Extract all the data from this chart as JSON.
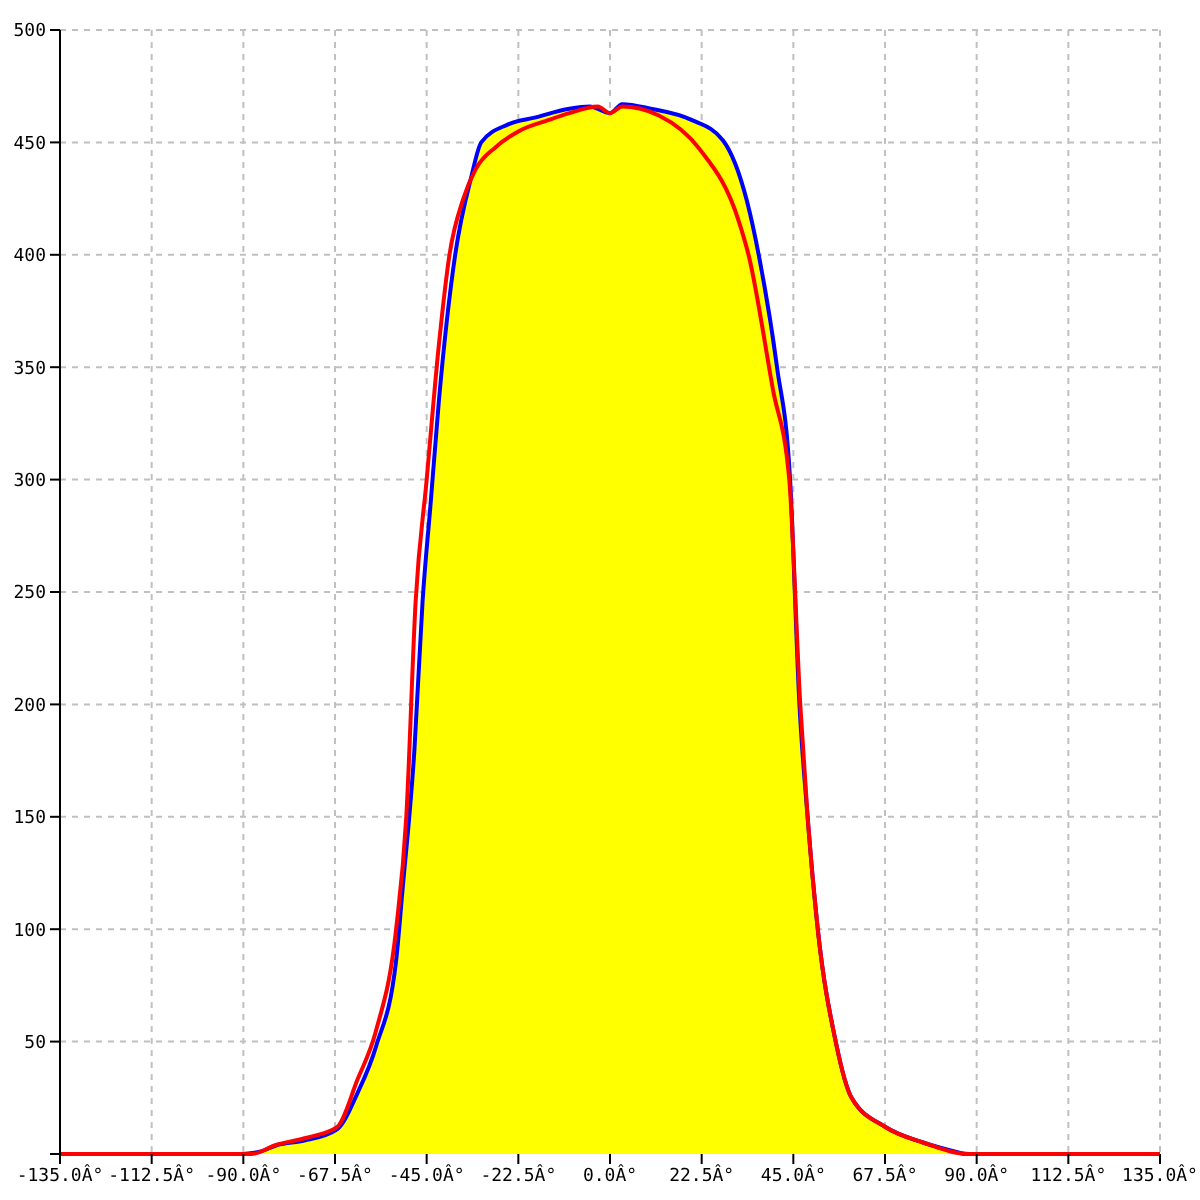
{
  "chart_data": {
    "type": "line",
    "xlim": [
      -135,
      135
    ],
    "xticks": [
      {
        "value": -135,
        "label": "-135.0Â°"
      },
      {
        "value": -112.5,
        "label": "-112.5Â°"
      },
      {
        "value": -90,
        "label": "-90.0Â°"
      },
      {
        "value": -67.5,
        "label": "-67.5Â°"
      },
      {
        "value": -45,
        "label": "-45.0Â°"
      },
      {
        "value": -22.5,
        "label": "-22.5Â°"
      },
      {
        "value": 0,
        "label": "0.0Â°"
      },
      {
        "value": 22.5,
        "label": "22.5Â°"
      },
      {
        "value": 45,
        "label": "45.0Â°"
      },
      {
        "value": 67.5,
        "label": "67.5Â°"
      },
      {
        "value": 90,
        "label": "90.0Â°"
      },
      {
        "value": 112.5,
        "label": "112.5Â°"
      },
      {
        "value": 135,
        "label": "135.0Â°"
      }
    ],
    "ylim": [
      0,
      500
    ],
    "yticks": [
      {
        "value": 0,
        "label": null
      },
      50,
      100,
      150,
      200,
      250,
      300,
      350,
      400,
      450,
      500
    ],
    "grid": true,
    "legend": false,
    "marker": "none",
    "line_style": "solid",
    "series": [
      {
        "color": "#ff0000",
        "x": [
          -135,
          -88,
          -82,
          -75,
          -67,
          -62,
          -57.4,
          -52.5,
          -50,
          -47.7,
          -45,
          -42,
          -39.4,
          -36,
          -33,
          -28,
          -22.4,
          -15,
          -10,
          -3,
          0,
          3,
          12,
          22,
          31.6,
          34,
          40,
          44,
          46.7,
          48.5,
          51,
          55.4,
          59.3,
          67.6,
          77,
          88,
          135
        ],
        "values": [
          0,
          0,
          4,
          7,
          12,
          33,
          55,
          100,
          150,
          246,
          300,
          360,
          400,
          425,
          438,
          448,
          455,
          460,
          463,
          466,
          463,
          466,
          462,
          447,
          415,
          400,
          340,
          300,
          200,
          150,
          100,
          50,
          25,
          12,
          5,
          0,
          0
        ]
      },
      {
        "type": "area",
        "color": "#0000ff",
        "colors": [
          "#ffff00",
          "#ffff00",
          "#ffff00",
          "#ffff00",
          "#ffff00",
          "#ffff00",
          "#ffff00",
          "#ffff00",
          "#ffff00",
          "#ffff00",
          "#ffff00",
          "#ffff00",
          "#ffff00",
          "#ffff00",
          "#ffff00",
          "#ffff00",
          "#ffff00",
          "#ffff00",
          "#ffff00",
          "#ffff00",
          "#ffff00",
          "#ffff00",
          "#ffff00",
          "#ffff00",
          "#ffff00",
          "#ffff00",
          "#ffff00",
          "#ffff00",
          "#ffff00",
          "#ffff00",
          "#ffff00",
          "#ffff00",
          "#ffff00",
          "#ffff00",
          "#ffff00",
          "#ffff00",
          "#ffff00"
        ],
        "x": [
          -90,
          -86,
          -81.7,
          -75,
          -67,
          -62,
          -57.4,
          -52.5,
          -51,
          -48,
          -46,
          -44,
          -42,
          -38,
          -34,
          -31.6,
          -25,
          -18.5,
          -10,
          -5,
          0,
          3,
          10,
          20,
          27.7,
          33.6,
          36.5,
          41,
          44.2,
          46.5,
          48.5,
          51,
          55.4,
          59.3,
          67.6,
          77,
          87
        ],
        "values": [
          0,
          1,
          4,
          6,
          11,
          27,
          48,
          86,
          116,
          180,
          246,
          290,
          335,
          400,
          435,
          450,
          458,
          461,
          465,
          466,
          463,
          467,
          465,
          460,
          451,
          424,
          400,
          350,
          300,
          200,
          150,
          100,
          50,
          25,
          12,
          5,
          0
        ]
      }
    ]
  }
}
